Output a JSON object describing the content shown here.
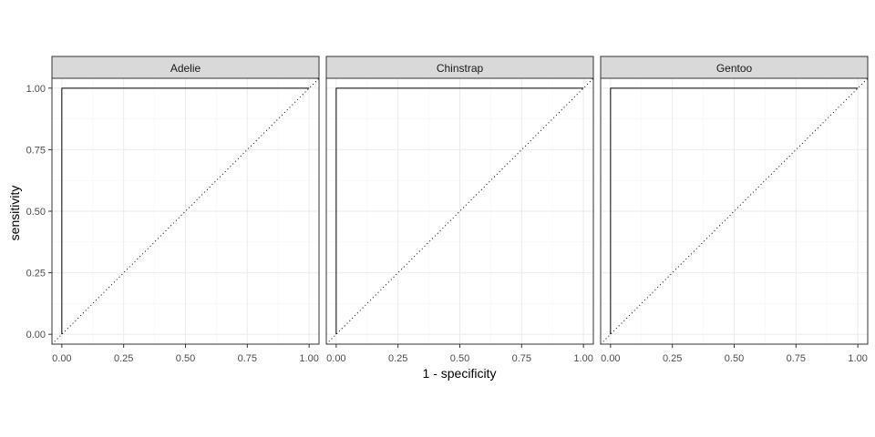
{
  "chart_data": {
    "type": "line",
    "xlabel": "1 - specificity",
    "ylabel": "sensitivity",
    "xlim": [
      -0.04,
      1.04
    ],
    "ylim": [
      -0.04,
      1.04
    ],
    "x_ticks": [
      "0.00",
      "0.25",
      "0.50",
      "0.75",
      "1.00"
    ],
    "y_ticks": [
      "0.00",
      "0.25",
      "0.50",
      "0.75",
      "1.00"
    ],
    "grid": true,
    "reference_line": "diagonal dotted",
    "panels": [
      {
        "label": "Adelie",
        "roc": [
          [
            0,
            0
          ],
          [
            0,
            1
          ],
          [
            1,
            1
          ]
        ]
      },
      {
        "label": "Chinstrap",
        "roc": [
          [
            0,
            0
          ],
          [
            0,
            1
          ],
          [
            1,
            1
          ]
        ]
      },
      {
        "label": "Gentoo",
        "roc": [
          [
            0,
            0
          ],
          [
            0,
            1
          ],
          [
            1,
            1
          ]
        ]
      }
    ],
    "colors": {
      "strip_fill": "#d9d9d9",
      "grid_major": "#ebebeb",
      "grid_minor": "#f5f5f5",
      "curve": "#000000",
      "border": "#333333"
    }
  }
}
